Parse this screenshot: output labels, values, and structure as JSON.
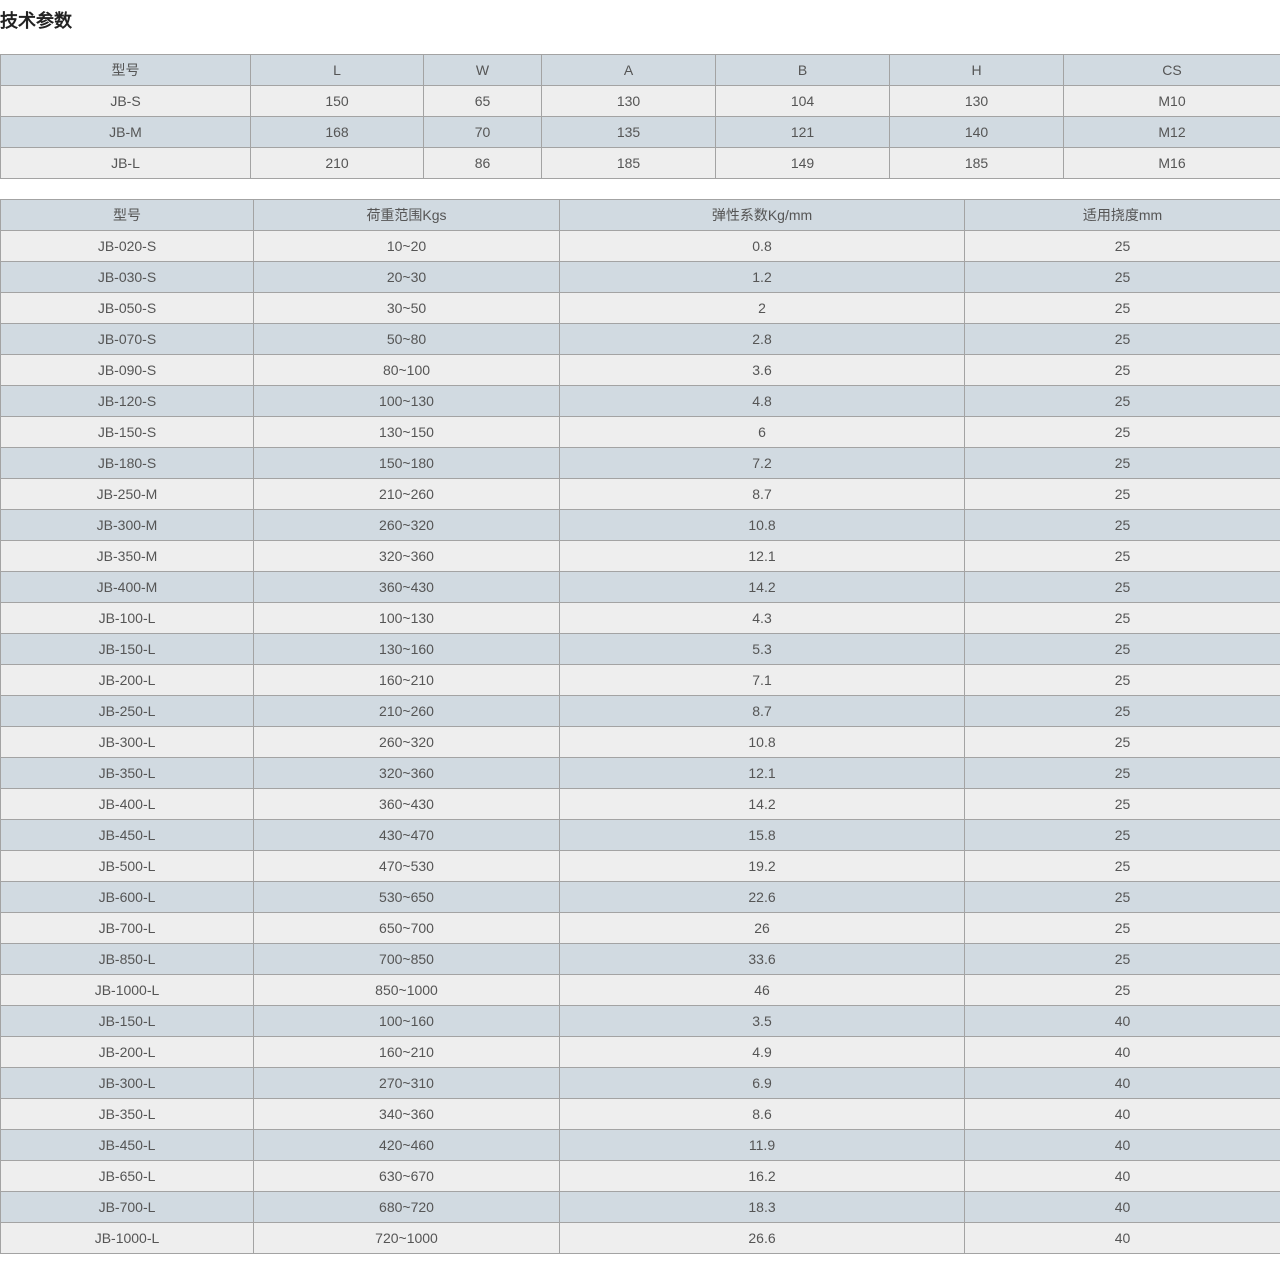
{
  "title": "技术参数",
  "dimensions_table": {
    "headers": [
      "型号",
      "L",
      "W",
      "A",
      "B",
      "H",
      "CS"
    ],
    "rows": [
      [
        "JB-S",
        "150",
        "65",
        "130",
        "104",
        "130",
        "M10"
      ],
      [
        "JB-M",
        "168",
        "70",
        "135",
        "121",
        "140",
        "M12"
      ],
      [
        "JB-L",
        "210",
        "86",
        "185",
        "149",
        "185",
        "M16"
      ]
    ]
  },
  "load_table": {
    "headers": [
      "型号",
      "荷重范围Kgs",
      "弹性系数Kg/mm",
      "适用挠度mm"
    ],
    "rows": [
      [
        "JB-020-S",
        "10~20",
        "0.8",
        "25"
      ],
      [
        "JB-030-S",
        "20~30",
        "1.2",
        "25"
      ],
      [
        "JB-050-S",
        "30~50",
        "2",
        "25"
      ],
      [
        "JB-070-S",
        "50~80",
        "2.8",
        "25"
      ],
      [
        "JB-090-S",
        "80~100",
        "3.6",
        "25"
      ],
      [
        "JB-120-S",
        "100~130",
        "4.8",
        "25"
      ],
      [
        "JB-150-S",
        "130~150",
        "6",
        "25"
      ],
      [
        "JB-180-S",
        "150~180",
        "7.2",
        "25"
      ],
      [
        "JB-250-M",
        "210~260",
        "8.7",
        "25"
      ],
      [
        "JB-300-M",
        "260~320",
        "10.8",
        "25"
      ],
      [
        "JB-350-M",
        "320~360",
        "12.1",
        "25"
      ],
      [
        "JB-400-M",
        "360~430",
        "14.2",
        "25"
      ],
      [
        "JB-100-L",
        "100~130",
        "4.3",
        "25"
      ],
      [
        "JB-150-L",
        "130~160",
        "5.3",
        "25"
      ],
      [
        "JB-200-L",
        "160~210",
        "7.1",
        "25"
      ],
      [
        "JB-250-L",
        "210~260",
        "8.7",
        "25"
      ],
      [
        "JB-300-L",
        "260~320",
        "10.8",
        "25"
      ],
      [
        "JB-350-L",
        "320~360",
        "12.1",
        "25"
      ],
      [
        "JB-400-L",
        "360~430",
        "14.2",
        "25"
      ],
      [
        "JB-450-L",
        "430~470",
        "15.8",
        "25"
      ],
      [
        "JB-500-L",
        "470~530",
        "19.2",
        "25"
      ],
      [
        "JB-600-L",
        "530~650",
        "22.6",
        "25"
      ],
      [
        "JB-700-L",
        "650~700",
        "26",
        "25"
      ],
      [
        "JB-850-L",
        "700~850",
        "33.6",
        "25"
      ],
      [
        "JB-1000-L",
        "850~1000",
        "46",
        "25"
      ],
      [
        "JB-150-L",
        "100~160",
        "3.5",
        "40"
      ],
      [
        "JB-200-L",
        "160~210",
        "4.9",
        "40"
      ],
      [
        "JB-300-L",
        "270~310",
        "6.9",
        "40"
      ],
      [
        "JB-350-L",
        "340~360",
        "8.6",
        "40"
      ],
      [
        "JB-450-L",
        "420~460",
        "11.9",
        "40"
      ],
      [
        "JB-650-L",
        "630~670",
        "16.2",
        "40"
      ],
      [
        "JB-700-L",
        "680~720",
        "18.3",
        "40"
      ],
      [
        "JB-1000-L",
        "720~1000",
        "26.6",
        "40"
      ]
    ]
  },
  "colors": {
    "header_row": "#d1dae1",
    "alt_row": "#eeeeee",
    "border": "#a3a3a3",
    "text": "#555555"
  }
}
